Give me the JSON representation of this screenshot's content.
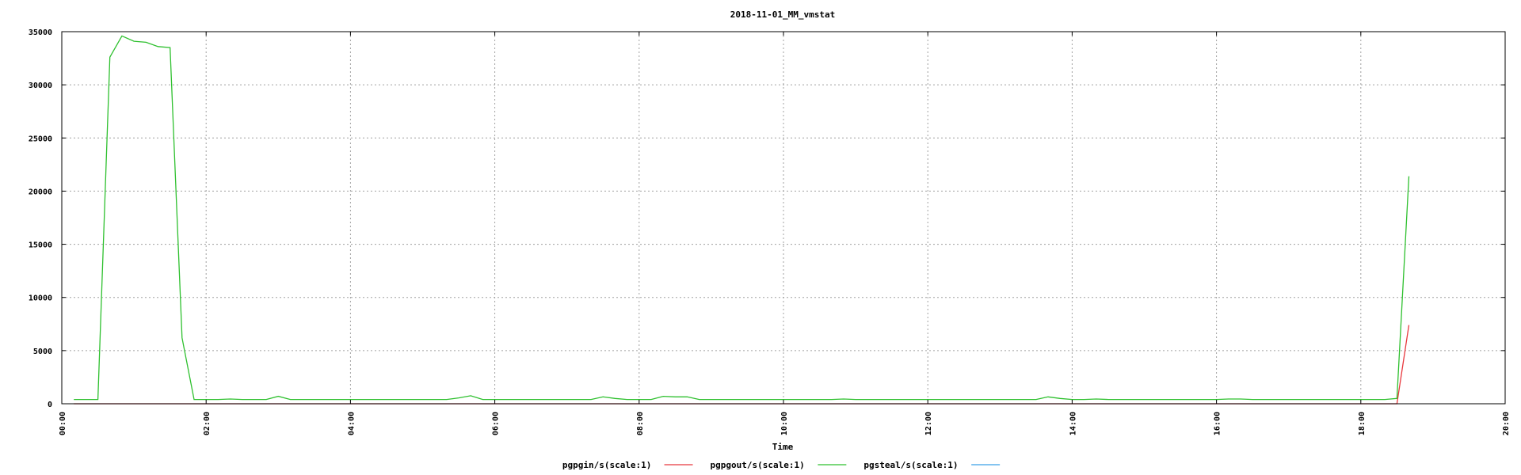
{
  "chart_data": {
    "type": "line",
    "title": "2018-11-01_MM_vmstat",
    "xlabel": "Time",
    "ylabel": "",
    "xlim": [
      "00:00",
      "20:00"
    ],
    "ylim": [
      0,
      35000
    ],
    "grid": true,
    "legend_position": "bottom-center",
    "x_ticks": [
      "00:00",
      "02:00",
      "04:00",
      "06:00",
      "08:00",
      "10:00",
      "12:00",
      "14:00",
      "16:00",
      "18:00",
      "20:00"
    ],
    "y_ticks": [
      "0",
      "5000",
      "10000",
      "15000",
      "20000",
      "25000",
      "30000",
      "35000"
    ],
    "series": [
      {
        "name": "pgpgin/s(scale:1)",
        "color": "#e8383d",
        "points": [
          [
            "00:10",
            0
          ],
          [
            "03:00",
            0
          ],
          [
            "03:10",
            0
          ],
          [
            "03:20",
            0
          ],
          [
            "18:30",
            0
          ],
          [
            "18:40",
            7400
          ]
        ]
      },
      {
        "name": "pgpgout/s(scale:1)",
        "color": "#2ec02e",
        "points": [
          [
            "00:10",
            400
          ],
          [
            "00:20",
            400
          ],
          [
            "00:30",
            400
          ],
          [
            "00:40",
            32600
          ],
          [
            "00:50",
            34600
          ],
          [
            "01:00",
            34100
          ],
          [
            "01:10",
            34000
          ],
          [
            "01:20",
            33600
          ],
          [
            "01:30",
            33500
          ],
          [
            "01:40",
            6200
          ],
          [
            "01:50",
            400
          ],
          [
            "02:00",
            400
          ],
          [
            "02:10",
            400
          ],
          [
            "02:20",
            450
          ],
          [
            "02:30",
            400
          ],
          [
            "02:40",
            400
          ],
          [
            "02:50",
            400
          ],
          [
            "03:00",
            700
          ],
          [
            "03:10",
            400
          ],
          [
            "03:20",
            400
          ],
          [
            "03:30",
            400
          ],
          [
            "04:00",
            400
          ],
          [
            "05:00",
            400
          ],
          [
            "05:20",
            400
          ],
          [
            "05:30",
            550
          ],
          [
            "05:40",
            750
          ],
          [
            "05:50",
            400
          ],
          [
            "06:00",
            400
          ],
          [
            "07:00",
            400
          ],
          [
            "07:20",
            400
          ],
          [
            "07:30",
            650
          ],
          [
            "07:40",
            500
          ],
          [
            "07:50",
            400
          ],
          [
            "08:00",
            400
          ],
          [
            "08:10",
            400
          ],
          [
            "08:20",
            700
          ],
          [
            "08:30",
            650
          ],
          [
            "08:40",
            650
          ],
          [
            "08:50",
            400
          ],
          [
            "09:00",
            400
          ],
          [
            "10:00",
            400
          ],
          [
            "10:40",
            400
          ],
          [
            "10:50",
            450
          ],
          [
            "11:00",
            400
          ],
          [
            "12:00",
            400
          ],
          [
            "13:00",
            400
          ],
          [
            "13:30",
            400
          ],
          [
            "13:40",
            650
          ],
          [
            "13:50",
            500
          ],
          [
            "14:00",
            400
          ],
          [
            "14:10",
            400
          ],
          [
            "14:20",
            450
          ],
          [
            "14:30",
            400
          ],
          [
            "15:00",
            400
          ],
          [
            "16:00",
            400
          ],
          [
            "16:10",
            450
          ],
          [
            "16:20",
            450
          ],
          [
            "16:30",
            400
          ],
          [
            "17:00",
            400
          ],
          [
            "18:00",
            400
          ],
          [
            "18:20",
            400
          ],
          [
            "18:30",
            500
          ],
          [
            "18:40",
            21400
          ]
        ]
      },
      {
        "name": "pgsteal/s(scale:1)",
        "color": "#3aa0e8",
        "points": []
      }
    ]
  }
}
